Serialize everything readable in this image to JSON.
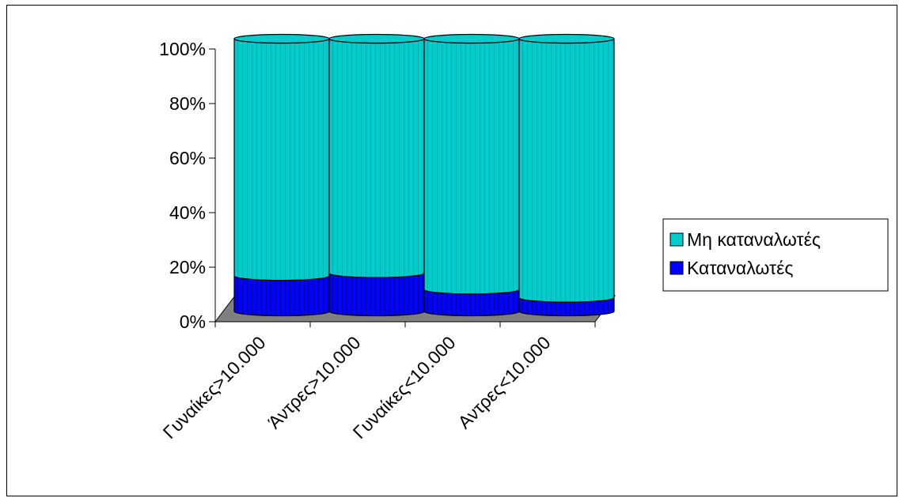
{
  "chart_data": {
    "type": "bar",
    "style": "stacked-100-percent-3d-cylinder",
    "categories": [
      "Γυναίκες>10.000",
      "Άντρες>10.000",
      "Γυναίκες<10.000",
      "Αντρες<10.000"
    ],
    "series": [
      {
        "name": "Καταναλωτές",
        "values": [
          13,
          14,
          8,
          5
        ],
        "color": "#0000ff"
      },
      {
        "name": "Μη καταναλωτές",
        "values": [
          87,
          86,
          92,
          95
        ],
        "color": "#00cccc"
      }
    ],
    "yticks": [
      "0%",
      "20%",
      "40%",
      "60%",
      "80%",
      "100%"
    ],
    "ylim": [
      0,
      100
    ],
    "legend_position": "right",
    "grid": false,
    "floor_color": "#808080"
  }
}
